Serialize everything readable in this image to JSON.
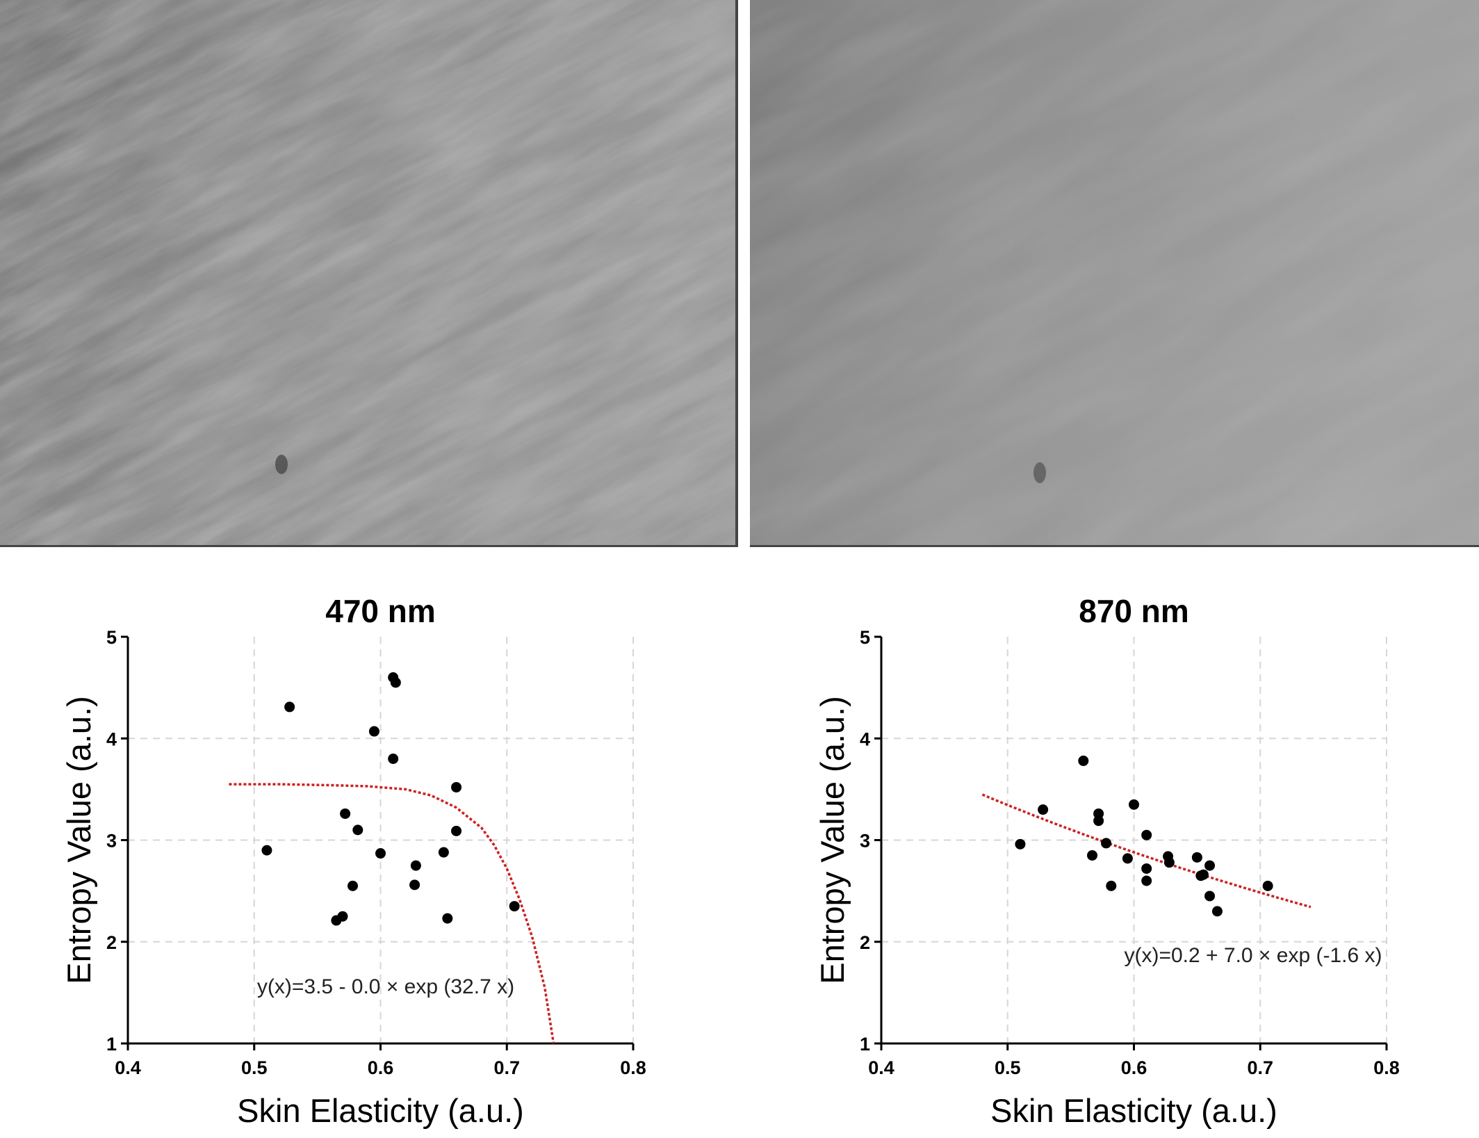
{
  "images": {
    "left": {
      "icon": "skin-texture-470nm-photo",
      "tone": "#8a8a8a"
    },
    "right": {
      "icon": "skin-texture-870nm-photo",
      "tone": "#959595"
    }
  },
  "colors": {
    "fit": "#cc2222",
    "points": "#000000",
    "grid": "#d6d6d6"
  },
  "chart_data": [
    {
      "type": "scatter",
      "title": "470 nm",
      "xlabel": "Skin Elasticity (a.u.)",
      "ylabel": "Entropy Value (a.u.)",
      "xlim": [
        0.4,
        0.8
      ],
      "ylim": [
        1,
        5
      ],
      "xticks": [
        "0.4",
        "0.5",
        "0.6",
        "0.7",
        "0.8"
      ],
      "yticks": [
        "1",
        "2",
        "3",
        "4",
        "5"
      ],
      "grid": true,
      "points": [
        {
          "x": 0.51,
          "y": 2.9
        },
        {
          "x": 0.528,
          "y": 4.31
        },
        {
          "x": 0.565,
          "y": 2.21
        },
        {
          "x": 0.57,
          "y": 2.25
        },
        {
          "x": 0.572,
          "y": 3.26
        },
        {
          "x": 0.578,
          "y": 2.55
        },
        {
          "x": 0.582,
          "y": 3.1
        },
        {
          "x": 0.595,
          "y": 4.07
        },
        {
          "x": 0.6,
          "y": 2.87
        },
        {
          "x": 0.61,
          "y": 3.8
        },
        {
          "x": 0.61,
          "y": 4.6
        },
        {
          "x": 0.612,
          "y": 4.55
        },
        {
          "x": 0.627,
          "y": 2.56
        },
        {
          "x": 0.628,
          "y": 2.75
        },
        {
          "x": 0.65,
          "y": 2.88
        },
        {
          "x": 0.653,
          "y": 2.23
        },
        {
          "x": 0.66,
          "y": 3.52
        },
        {
          "x": 0.66,
          "y": 3.09
        },
        {
          "x": 0.706,
          "y": 2.35
        }
      ],
      "fit": {
        "model": "exp",
        "a": 3.5,
        "b": 0.0,
        "c": 32.7,
        "sign": -1,
        "xrange": [
          0.48,
          0.74
        ],
        "samples": [
          [
            0.48,
            3.55
          ],
          [
            0.52,
            3.55
          ],
          [
            0.56,
            3.54
          ],
          [
            0.59,
            3.53
          ],
          [
            0.62,
            3.5
          ],
          [
            0.64,
            3.44
          ],
          [
            0.66,
            3.32
          ],
          [
            0.68,
            3.12
          ],
          [
            0.69,
            2.95
          ],
          [
            0.7,
            2.72
          ],
          [
            0.71,
            2.42
          ],
          [
            0.72,
            2.05
          ],
          [
            0.73,
            1.55
          ],
          [
            0.737,
            1.0
          ]
        ]
      },
      "equation": "y(x)=3.5 - 0.0 × exp (32.7 x)"
    },
    {
      "type": "scatter",
      "title": "870 nm",
      "xlabel": "Skin Elasticity (a.u.)",
      "ylabel": "Entropy Value (a.u.)",
      "xlim": [
        0.4,
        0.8
      ],
      "ylim": [
        1,
        5
      ],
      "xticks": [
        "0.4",
        "0.5",
        "0.6",
        "0.7",
        "0.8"
      ],
      "yticks": [
        "1",
        "2",
        "3",
        "4",
        "5"
      ],
      "grid": true,
      "points": [
        {
          "x": 0.51,
          "y": 2.96
        },
        {
          "x": 0.528,
          "y": 3.3
        },
        {
          "x": 0.56,
          "y": 3.78
        },
        {
          "x": 0.567,
          "y": 2.85
        },
        {
          "x": 0.572,
          "y": 3.26
        },
        {
          "x": 0.572,
          "y": 3.19
        },
        {
          "x": 0.578,
          "y": 2.97
        },
        {
          "x": 0.582,
          "y": 2.55
        },
        {
          "x": 0.595,
          "y": 2.82
        },
        {
          "x": 0.6,
          "y": 3.35
        },
        {
          "x": 0.61,
          "y": 3.05
        },
        {
          "x": 0.61,
          "y": 2.72
        },
        {
          "x": 0.61,
          "y": 2.6
        },
        {
          "x": 0.627,
          "y": 2.84
        },
        {
          "x": 0.628,
          "y": 2.78
        },
        {
          "x": 0.65,
          "y": 2.83
        },
        {
          "x": 0.653,
          "y": 2.65
        },
        {
          "x": 0.655,
          "y": 2.66
        },
        {
          "x": 0.66,
          "y": 2.75
        },
        {
          "x": 0.66,
          "y": 2.45
        },
        {
          "x": 0.666,
          "y": 2.3
        },
        {
          "x": 0.706,
          "y": 2.55
        }
      ],
      "fit": {
        "model": "exp",
        "a": 0.2,
        "b": 7.0,
        "c": -1.6,
        "sign": 1,
        "xrange": [
          0.48,
          0.74
        ]
      },
      "equation": "y(x)=0.2 + 7.0 × exp (-1.6 x)"
    }
  ]
}
